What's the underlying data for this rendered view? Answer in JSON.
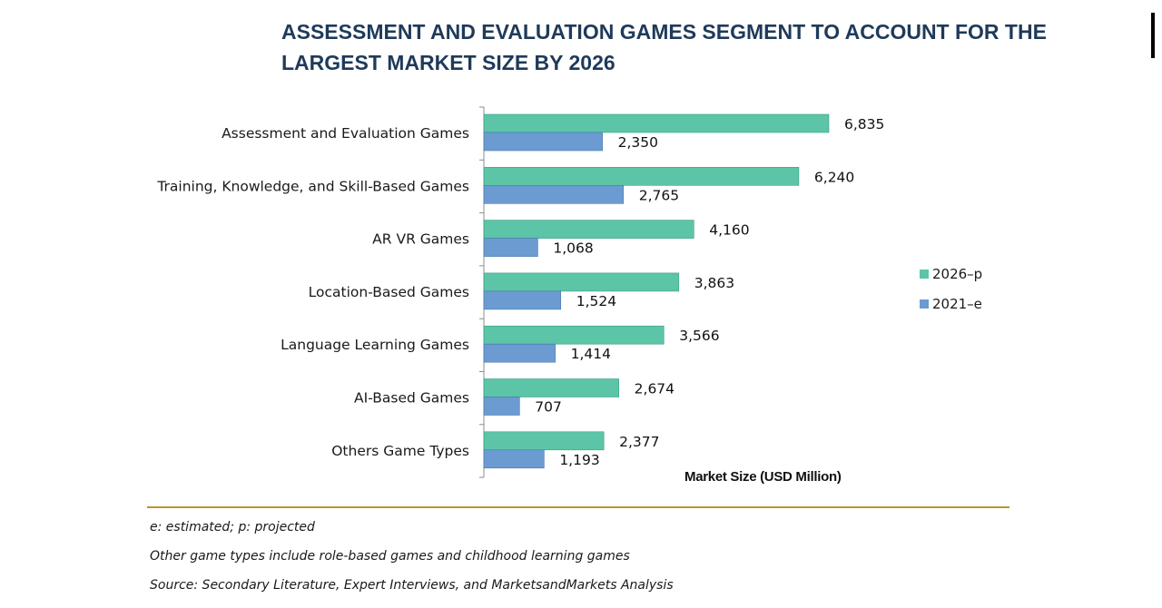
{
  "title_lines": [
    "ASSESSMENT AND EVALUATION GAMES SEGMENT TO ACCOUNT FOR THE",
    "LARGEST MARKET SIZE BY 2026"
  ],
  "footnotes": [
    "e: estimated; p: projected",
    "Other game types include role-based games and childhood learning games",
    "Source: Secondary Literature, Expert Interviews, and MarketsandMarkets Analysis"
  ],
  "colors": {
    "series_2026": "#5cc4a7",
    "series_2026_edge": "#3a9e82",
    "series_2021": "#6b9bd1",
    "series_2021_edge": "#4677b0",
    "title": "#1f3a5a",
    "divider": "#b8952e"
  },
  "chart_data": {
    "type": "bar",
    "orientation": "horizontal",
    "title": "ASSESSMENT AND EVALUATION GAMES SEGMENT TO ACCOUNT FOR THE LARGEST MARKET SIZE BY 2026",
    "xlabel": "Market Size (USD Million)",
    "ylabel": "",
    "xlim": [
      0,
      7500
    ],
    "grid": false,
    "legend_position": "right",
    "categories": [
      "Assessment and Evaluation Games",
      "Training, Knowledge, and Skill-Based Games",
      "AR VR Games",
      "Location-Based Games",
      "Language Learning Games",
      "AI-Based Games",
      "Others Game Types"
    ],
    "series": [
      {
        "name": "2026–p",
        "values": [
          6835,
          6240,
          4160,
          3863,
          3566,
          2674,
          2377
        ],
        "labels": [
          "6,835",
          "6,240",
          "4,160",
          "3,863",
          "3,566",
          "2,674",
          "2,377"
        ]
      },
      {
        "name": "2021–e",
        "values": [
          2350,
          2765,
          1068,
          1524,
          1414,
          707,
          1193
        ],
        "labels": [
          "2,350",
          "2,765",
          "1,068",
          "1,524",
          "1,414",
          "707",
          "1,193"
        ]
      }
    ]
  }
}
